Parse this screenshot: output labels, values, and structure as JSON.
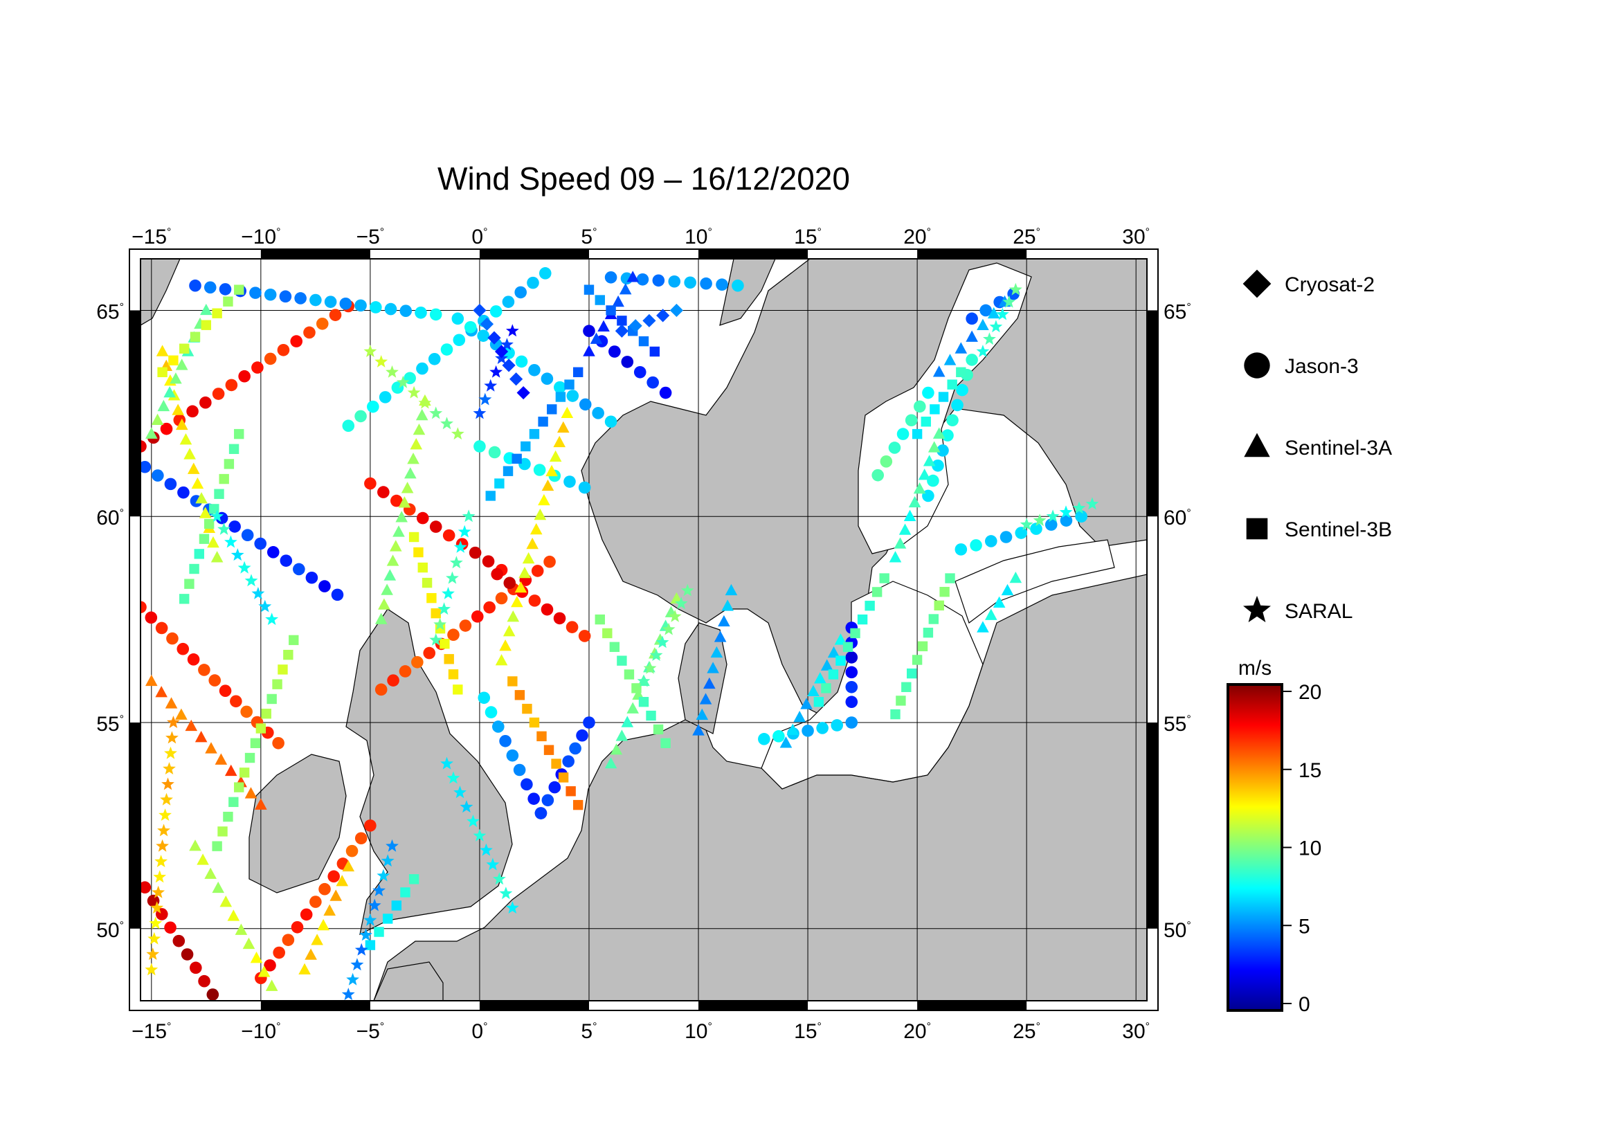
{
  "title": "Wind Speed 09 – 16/12/2020",
  "map": {
    "lon_range": [
      -15.5,
      30.5
    ],
    "lat_range": [
      48.25,
      66.25
    ],
    "lon_ticks": [
      -15,
      -10,
      -5,
      0,
      5,
      10,
      15,
      20,
      25,
      30
    ],
    "lat_ticks": [
      50,
      55,
      60,
      65
    ],
    "lon_tick_labels": [
      "−15",
      "−10",
      "−5",
      "0",
      "5",
      "10",
      "15",
      "20",
      "25",
      "30"
    ],
    "lat_tick_labels": [
      "50",
      "55",
      "60",
      "65"
    ],
    "degree_symbol": "°",
    "land_color": "#bebebe",
    "sea_color": "#ffffff",
    "grid": true
  },
  "legend": {
    "items": [
      {
        "label": "Cryosat-2",
        "symbol": "diamond-icon"
      },
      {
        "label": "Jason-3",
        "symbol": "circle-icon"
      },
      {
        "label": "Sentinel-3A",
        "symbol": "triangle-icon"
      },
      {
        "label": "Sentinel-3B",
        "symbol": "square-icon"
      },
      {
        "label": "SARAL",
        "symbol": "star-icon"
      }
    ]
  },
  "colorbar": {
    "unit": "m/s",
    "range": [
      0,
      20
    ],
    "ticks": [
      0,
      5,
      10,
      15,
      20
    ],
    "tick_labels": [
      "0",
      "5",
      "10",
      "15",
      "20"
    ],
    "colormap": [
      "#00008f",
      "#0000ff",
      "#0080ff",
      "#00ffff",
      "#80ff80",
      "#ffff00",
      "#ff8000",
      "#ff0000",
      "#800000"
    ]
  },
  "chart_data": {
    "type": "scatter",
    "title": "Wind Speed 09 – 16/12/2020",
    "xlabel": "",
    "ylabel": "",
    "xlim": [
      -15.5,
      30.5
    ],
    "ylim": [
      48.25,
      66.25
    ],
    "value_unit": "m/s",
    "value_range": [
      0,
      20
    ],
    "series": [
      {
        "name": "Jason-3",
        "tracks": [
          {
            "start": [
              -15.3,
              51.0
            ],
            "end": [
              -12.2,
              48.4
            ],
            "v0": 18,
            "v1": 19
          },
          {
            "start": [
              -15.5,
              57.8
            ],
            "end": [
              -9.2,
              54.5
            ],
            "v0": 17,
            "v1": 16
          },
          {
            "start": [
              -15.5,
              61.7
            ],
            "end": [
              -6.0,
              65.1
            ],
            "v0": 18,
            "v1": 16
          },
          {
            "start": [
              -15.3,
              61.2
            ],
            "end": [
              -6.5,
              58.1
            ],
            "v0": 4,
            "v1": 3
          },
          {
            "start": [
              -13.0,
              65.6
            ],
            "end": [
              -2.0,
              64.9
            ],
            "v0": 4,
            "v1": 7
          },
          {
            "start": [
              -6.0,
              62.2
            ],
            "end": [
              3.0,
              65.9
            ],
            "v0": 8,
            "v1": 6
          },
          {
            "start": [
              -10.0,
              48.8
            ],
            "end": [
              -5.0,
              52.5
            ],
            "v0": 17,
            "v1": 16
          },
          {
            "start": [
              -4.5,
              55.8
            ],
            "end": [
              3.2,
              58.9
            ],
            "v0": 16,
            "v1": 17
          },
          {
            "start": [
              -5.0,
              60.8
            ],
            "end": [
              1.0,
              58.7
            ],
            "v0": 17,
            "v1": 18
          },
          {
            "start": [
              0.8,
              58.6
            ],
            "end": [
              4.8,
              57.1
            ],
            "v0": 18,
            "v1": 17
          },
          {
            "start": [
              -1.0,
              64.8
            ],
            "end": [
              6.0,
              62.3
            ],
            "v0": 7,
            "v1": 6
          },
          {
            "start": [
              0.0,
              61.7
            ],
            "end": [
              4.8,
              60.7
            ],
            "v0": 8,
            "v1": 7
          },
          {
            "start": [
              2.8,
              52.8
            ],
            "end": [
              5.0,
              55.0
            ],
            "v0": 3,
            "v1": 4
          },
          {
            "start": [
              0.2,
              55.6
            ],
            "end": [
              2.8,
              52.8
            ],
            "v0": 7,
            "v1": 3
          },
          {
            "start": [
              5.0,
              64.5
            ],
            "end": [
              8.5,
              63.0
            ],
            "v0": 2,
            "v1": 3
          },
          {
            "start": [
              6.0,
              65.8
            ],
            "end": [
              11.8,
              65.6
            ],
            "v0": 5,
            "v1": 6
          },
          {
            "start": [
              20.5,
              60.5
            ],
            "end": [
              22.5,
              63.8
            ],
            "v0": 7,
            "v1": 8
          },
          {
            "start": [
              18.2,
              61.0
            ],
            "end": [
              20.5,
              63.0
            ],
            "v0": 9,
            "v1": 8
          },
          {
            "start": [
              22.5,
              64.8
            ],
            "end": [
              24.4,
              65.4
            ],
            "v0": 4,
            "v1": 5
          },
          {
            "start": [
              22.0,
              59.2
            ],
            "end": [
              27.5,
              60.0
            ],
            "v0": 7,
            "v1": 6
          },
          {
            "start": [
              17.0,
              55.5
            ],
            "end": [
              17.0,
              57.3
            ],
            "v0": 3,
            "v1": 2
          },
          {
            "start": [
              13.0,
              54.6
            ],
            "end": [
              17.0,
              55.0
            ],
            "v0": 7,
            "v1": 6
          }
        ]
      },
      {
        "name": "Sentinel-3A",
        "tracks": [
          {
            "start": [
              -15.0,
              56.0
            ],
            "end": [
              -10.0,
              53.0
            ],
            "v0": 15,
            "v1": 16
          },
          {
            "start": [
              -14.5,
              64.0
            ],
            "end": [
              -12.0,
              59.0
            ],
            "v0": 13,
            "v1": 12
          },
          {
            "start": [
              -13.0,
              52.0
            ],
            "end": [
              -9.5,
              48.6
            ],
            "v0": 11,
            "v1": 12
          },
          {
            "start": [
              -8.0,
              49.0
            ],
            "end": [
              -6.0,
              51.5
            ],
            "v0": 13,
            "v1": 14
          },
          {
            "start": [
              -4.5,
              57.5
            ],
            "end": [
              -2.5,
              62.8
            ],
            "v0": 10,
            "v1": 11
          },
          {
            "start": [
              1.0,
              56.5
            ],
            "end": [
              4.0,
              62.5
            ],
            "v0": 12,
            "v1": 13
          },
          {
            "start": [
              6.0,
              54.0
            ],
            "end": [
              9.0,
              58.0
            ],
            "v0": 9,
            "v1": 10
          },
          {
            "start": [
              10.0,
              54.8
            ],
            "end": [
              11.5,
              58.2
            ],
            "v0": 5,
            "v1": 6
          },
          {
            "start": [
              14.0,
              54.5
            ],
            "end": [
              16.5,
              57.0
            ],
            "v0": 6,
            "v1": 7
          },
          {
            "start": [
              19.0,
              59.0
            ],
            "end": [
              21.0,
              62.0
            ],
            "v0": 8,
            "v1": 9
          },
          {
            "start": [
              21.0,
              63.5
            ],
            "end": [
              24.0,
              65.2
            ],
            "v0": 5,
            "v1": 6
          },
          {
            "start": [
              5.0,
              64.0
            ],
            "end": [
              7.0,
              65.8
            ],
            "v0": 3,
            "v1": 4
          },
          {
            "start": [
              -15.0,
              62.0
            ],
            "end": [
              -12.5,
              65.0
            ],
            "v0": 10,
            "v1": 9
          },
          {
            "start": [
              23.0,
              57.3
            ],
            "end": [
              24.5,
              58.5
            ],
            "v0": 7,
            "v1": 8
          }
        ]
      },
      {
        "name": "Sentinel-3B",
        "tracks": [
          {
            "start": [
              -14.5,
              63.5
            ],
            "end": [
              -11.0,
              65.5
            ],
            "v0": 12,
            "v1": 11
          },
          {
            "start": [
              -13.5,
              58.0
            ],
            "end": [
              -11.0,
              62.0
            ],
            "v0": 9,
            "v1": 10
          },
          {
            "start": [
              -12.0,
              52.0
            ],
            "end": [
              -8.5,
              57.0
            ],
            "v0": 10,
            "v1": 11
          },
          {
            "start": [
              -3.0,
              59.5
            ],
            "end": [
              -1.0,
              55.8
            ],
            "v0": 12,
            "v1": 13
          },
          {
            "start": [
              0.5,
              60.5
            ],
            "end": [
              4.5,
              63.5
            ],
            "v0": 6,
            "v1": 5
          },
          {
            "start": [
              1.5,
              56.0
            ],
            "end": [
              4.5,
              53.0
            ],
            "v0": 14,
            "v1": 15
          },
          {
            "start": [
              5.5,
              57.5
            ],
            "end": [
              8.5,
              54.5
            ],
            "v0": 10,
            "v1": 9
          },
          {
            "start": [
              15.5,
              55.5
            ],
            "end": [
              18.5,
              58.5
            ],
            "v0": 8,
            "v1": 9
          },
          {
            "start": [
              19.0,
              55.2
            ],
            "end": [
              21.5,
              58.5
            ],
            "v0": 9,
            "v1": 10
          },
          {
            "start": [
              20.0,
              62.0
            ],
            "end": [
              22.0,
              63.5
            ],
            "v0": 7,
            "v1": 8
          },
          {
            "start": [
              5.0,
              65.5
            ],
            "end": [
              8.0,
              64.0
            ],
            "v0": 5,
            "v1": 4
          },
          {
            "start": [
              -5.0,
              49.6
            ],
            "end": [
              -3.0,
              51.2
            ],
            "v0": 7,
            "v1": 8
          }
        ]
      },
      {
        "name": "SARAL",
        "tracks": [
          {
            "start": [
              -15.0,
              49.0
            ],
            "end": [
              -14.0,
              55.0
            ],
            "v0": 13,
            "v1": 14
          },
          {
            "start": [
              -12.0,
              60.0
            ],
            "end": [
              -9.5,
              57.5
            ],
            "v0": 8,
            "v1": 7
          },
          {
            "start": [
              -6.0,
              48.4
            ],
            "end": [
              -4.0,
              52.0
            ],
            "v0": 5,
            "v1": 6
          },
          {
            "start": [
              -2.0,
              57.0
            ],
            "end": [
              -0.5,
              60.0
            ],
            "v0": 9,
            "v1": 8
          },
          {
            "start": [
              0.0,
              62.5
            ],
            "end": [
              1.5,
              64.5
            ],
            "v0": 4,
            "v1": 3
          },
          {
            "start": [
              -5.0,
              64.0
            ],
            "end": [
              -1.0,
              62.0
            ],
            "v0": 11,
            "v1": 10
          },
          {
            "start": [
              -1.5,
              54.0
            ],
            "end": [
              1.5,
              50.5
            ],
            "v0": 7,
            "v1": 8
          },
          {
            "start": [
              7.5,
              56.0
            ],
            "end": [
              9.5,
              58.2
            ],
            "v0": 9,
            "v1": 10
          },
          {
            "start": [
              23.0,
              64.0
            ],
            "end": [
              24.5,
              65.5
            ],
            "v0": 8,
            "v1": 9
          },
          {
            "start": [
              25.0,
              59.8
            ],
            "end": [
              28.0,
              60.3
            ],
            "v0": 9,
            "v1": 8
          }
        ]
      },
      {
        "name": "Cryosat-2",
        "tracks": [
          {
            "start": [
              0.0,
              65.0
            ],
            "end": [
              2.0,
              63.0
            ],
            "v0": 4,
            "v1": 3
          },
          {
            "start": [
              6.5,
              64.5
            ],
            "end": [
              9.0,
              65.0
            ],
            "v0": 4,
            "v1": 5
          }
        ]
      }
    ]
  }
}
